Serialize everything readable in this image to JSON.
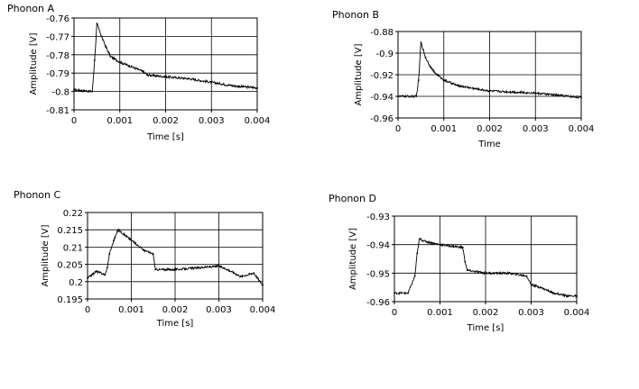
{
  "chart_data": [
    {
      "type": "line",
      "title": "Phonon A",
      "xlabel": "Time [s]",
      "ylabel": "Amplitude [V]",
      "xlim": [
        0,
        0.004
      ],
      "ylim": [
        -0.81,
        -0.76
      ],
      "xticks": [
        "0",
        "0.001",
        "0.002",
        "0.003",
        "0.004"
      ],
      "yticks": [
        "-0.76",
        "-0.77",
        "-0.78",
        "-0.79",
        "-0.8",
        "-0.81"
      ],
      "grid": true,
      "x": [
        0,
        0.0004,
        0.00045,
        0.0005,
        0.0006,
        0.0007,
        0.0008,
        0.001,
        0.0012,
        0.0015,
        0.0016,
        0.002,
        0.0025,
        0.003,
        0.0035,
        0.004
      ],
      "values": [
        -0.799,
        -0.8,
        -0.783,
        -0.763,
        -0.77,
        -0.776,
        -0.781,
        -0.784,
        -0.786,
        -0.789,
        -0.791,
        -0.792,
        -0.793,
        -0.795,
        -0.797,
        -0.798
      ]
    },
    {
      "type": "line",
      "title": "Phonon B",
      "xlabel": "Time",
      "ylabel": "Amplitude [V]",
      "xlim": [
        0,
        0.004
      ],
      "ylim": [
        -0.96,
        -0.88
      ],
      "xticks": [
        "0",
        "0.001",
        "0.002",
        "0.003",
        "0.004"
      ],
      "yticks": [
        "-0.88",
        "-0.9",
        "-0.92",
        "-0.94",
        "-0.96"
      ],
      "grid": true,
      "x": [
        0,
        0.0004,
        0.00045,
        0.0005,
        0.0006,
        0.0007,
        0.0008,
        0.001,
        0.0013,
        0.0017,
        0.002,
        0.0025,
        0.003,
        0.0035,
        0.004
      ],
      "values": [
        -0.94,
        -0.94,
        -0.925,
        -0.89,
        -0.904,
        -0.912,
        -0.918,
        -0.925,
        -0.93,
        -0.933,
        -0.935,
        -0.936,
        -0.937,
        -0.939,
        -0.941
      ]
    },
    {
      "type": "line",
      "title": "Phonon C",
      "xlabel": "Time [s]",
      "ylabel": "Amplitude [V]",
      "xlim": [
        0,
        0.004
      ],
      "ylim": [
        0.195,
        0.22
      ],
      "xticks": [
        "0",
        "0.001",
        "0.002",
        "0.003",
        "0.004"
      ],
      "yticks": [
        "0.22",
        "0.215",
        "0.21",
        "0.205",
        "0.2",
        "0.195"
      ],
      "grid": true,
      "x": [
        0,
        0.0002,
        0.0004,
        0.00045,
        0.0005,
        0.0006,
        0.0007,
        0.0009,
        0.0011,
        0.0013,
        0.0015,
        0.00155,
        0.002,
        0.0025,
        0.003,
        0.0032,
        0.0035,
        0.0038,
        0.004
      ],
      "values": [
        0.201,
        0.203,
        0.202,
        0.204,
        0.208,
        0.212,
        0.215,
        0.213,
        0.211,
        0.209,
        0.208,
        0.2035,
        0.2035,
        0.204,
        0.2045,
        0.2035,
        0.2015,
        0.2025,
        0.199
      ]
    },
    {
      "type": "line",
      "title": "Phonon D",
      "xlabel": "Time [s]",
      "ylabel": "Amplitude [V]",
      "xlim": [
        0,
        0.004
      ],
      "ylim": [
        -0.96,
        -0.93
      ],
      "xticks": [
        "0",
        "0.001",
        "0.002",
        "0.003",
        "0.004"
      ],
      "yticks": [
        "-0.93",
        "-0.94",
        "-0.95",
        "-0.96"
      ],
      "grid": true,
      "x": [
        0,
        0.0003,
        0.00045,
        0.0005,
        0.00055,
        0.0007,
        0.001,
        0.0015,
        0.00155,
        0.0016,
        0.002,
        0.0025,
        0.0029,
        0.003,
        0.0032,
        0.0035,
        0.0038,
        0.004
      ],
      "values": [
        -0.957,
        -0.957,
        -0.951,
        -0.943,
        -0.938,
        -0.939,
        -0.94,
        -0.941,
        -0.946,
        -0.949,
        -0.95,
        -0.95,
        -0.951,
        -0.954,
        -0.955,
        -0.957,
        -0.958,
        -0.958
      ]
    }
  ]
}
